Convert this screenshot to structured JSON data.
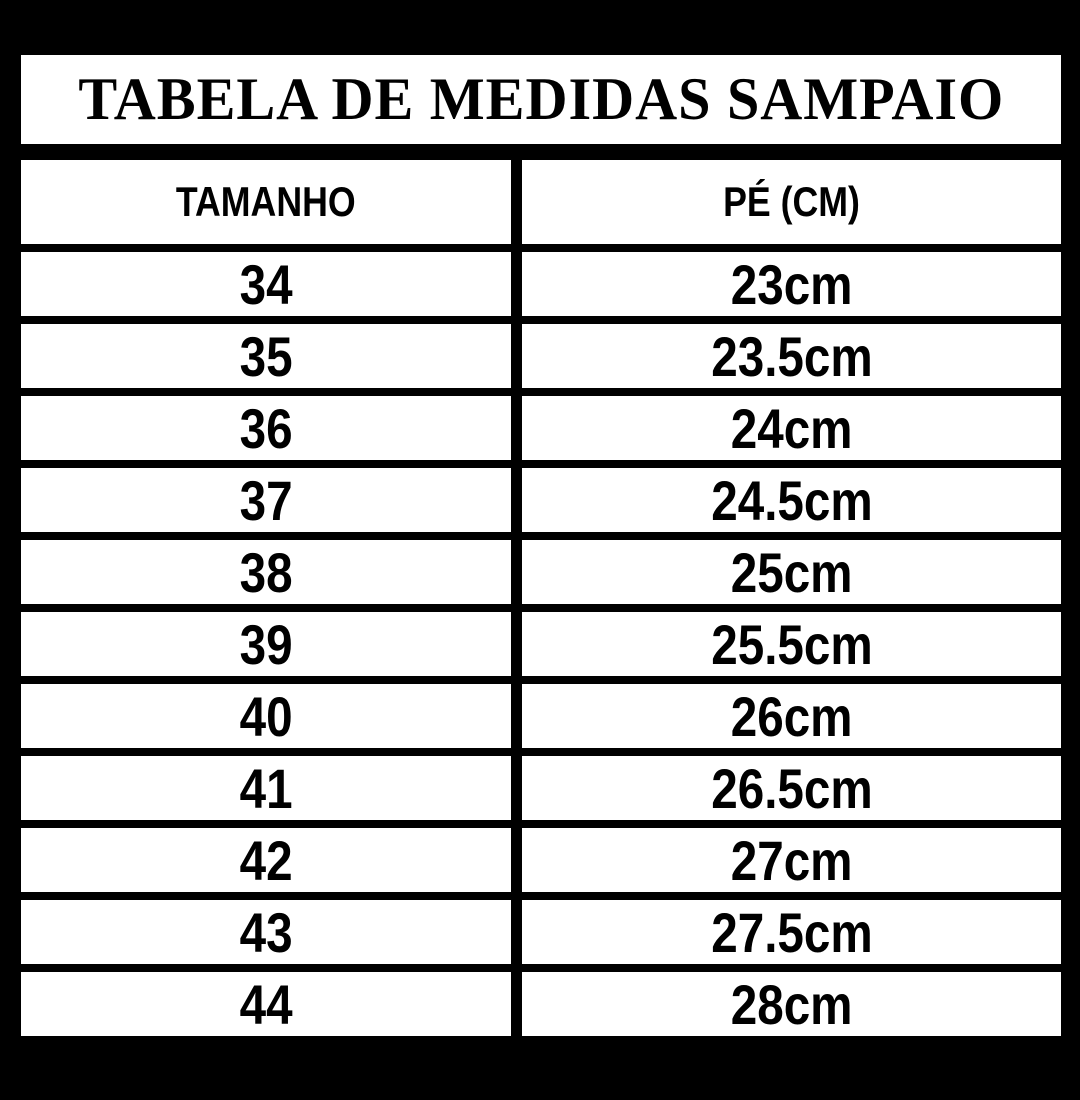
{
  "title": "TABELA DE MEDIDAS SAMPAIO",
  "colors": {
    "background": "#000000",
    "cell_background": "#ffffff",
    "text": "#000000"
  },
  "chart_data": {
    "type": "table",
    "title": "TABELA DE MEDIDAS SAMPAIO",
    "columns": [
      "TAMANHO",
      "PÉ (CM)"
    ],
    "rows": [
      [
        "34",
        "23cm"
      ],
      [
        "35",
        "23.5cm"
      ],
      [
        "36",
        "24cm"
      ],
      [
        "37",
        "24.5cm"
      ],
      [
        "38",
        "25cm"
      ],
      [
        "39",
        "25.5cm"
      ],
      [
        "40",
        "26cm"
      ],
      [
        "41",
        "26.5cm"
      ],
      [
        "42",
        "27cm"
      ],
      [
        "43",
        "27.5cm"
      ],
      [
        "44",
        "28cm"
      ]
    ]
  }
}
